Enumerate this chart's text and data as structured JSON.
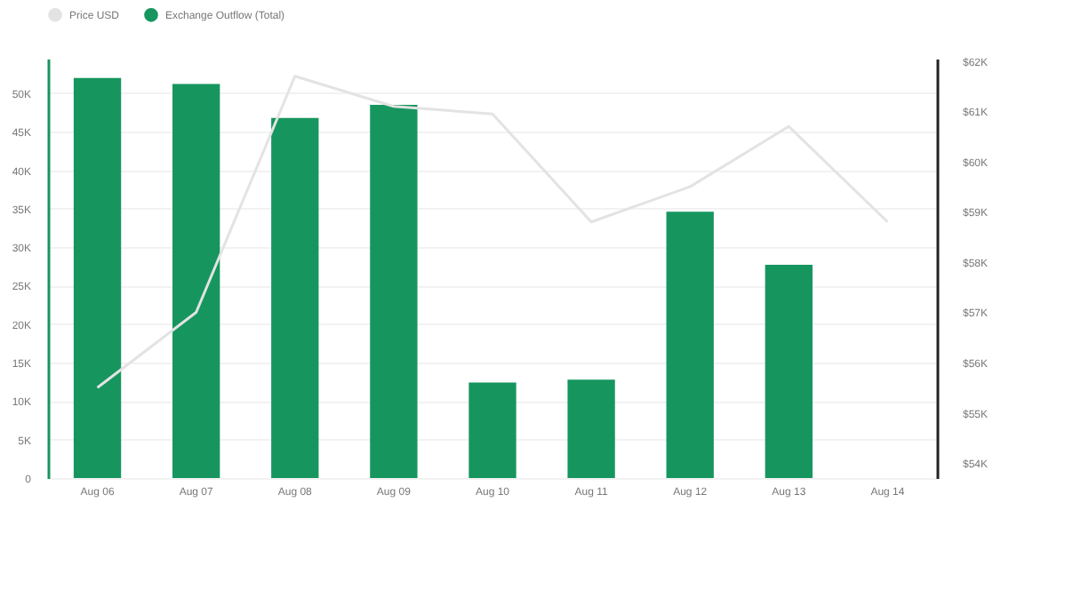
{
  "chart_data": {
    "type": "bar",
    "categories": [
      "Aug 06",
      "Aug 07",
      "Aug 08",
      "Aug 09",
      "Aug 10",
      "Aug 11",
      "Aug 12",
      "Aug 13",
      "Aug 14"
    ],
    "series": [
      {
        "name": "Price USD",
        "type": "line",
        "axis": "y2",
        "color": "#e3e3e3",
        "values": [
          55.5,
          57.0,
          61.7,
          61.1,
          60.95,
          58.8,
          59.5,
          60.7,
          58.8
        ]
      },
      {
        "name": "Exchange Outflow (Total)",
        "color": "#16965e",
        "values": [
          52,
          51.2,
          46.8,
          48.5,
          12.4,
          12.8,
          34.6,
          27.7,
          null
        ]
      }
    ],
    "ylim": [
      0,
      54.5
    ],
    "yticks": [
      {
        "value": 0,
        "label": "0"
      },
      {
        "value": 5,
        "label": "5K"
      },
      {
        "value": 10,
        "label": "10K"
      },
      {
        "value": 15,
        "label": "15K"
      },
      {
        "value": 20,
        "label": "20K"
      },
      {
        "value": 25,
        "label": "25K"
      },
      {
        "value": 30,
        "label": "30K"
      },
      {
        "value": 35,
        "label": "35K"
      },
      {
        "value": 40,
        "label": "40K"
      },
      {
        "value": 45,
        "label": "45K"
      },
      {
        "value": 50,
        "label": "50K"
      }
    ],
    "y2lim": [
      53.7,
      62.05
    ],
    "y2ticks": [
      {
        "value": 54,
        "label": "$54K"
      },
      {
        "value": 55,
        "label": "$55K"
      },
      {
        "value": 56,
        "label": "$56K"
      },
      {
        "value": 57,
        "label": "$57K"
      },
      {
        "value": 58,
        "label": "$58K"
      },
      {
        "value": 59,
        "label": "$59K"
      },
      {
        "value": 60,
        "label": "$60K"
      },
      {
        "value": 61,
        "label": "$61K"
      },
      {
        "value": 62,
        "label": "$62K"
      }
    ],
    "grid": "y",
    "legend": "top"
  }
}
